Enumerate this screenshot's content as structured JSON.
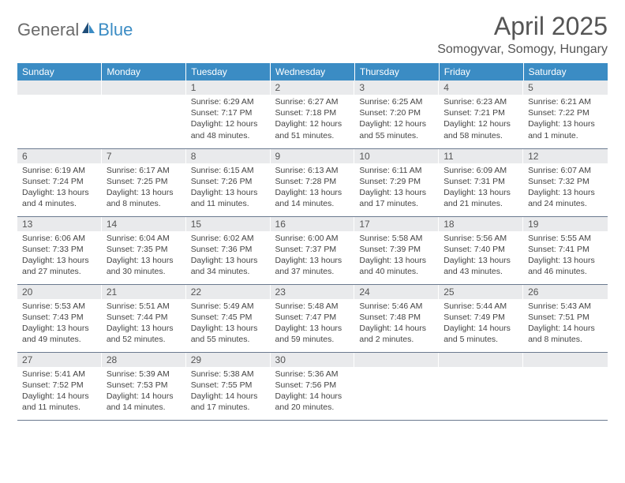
{
  "brand": {
    "general": "General",
    "blue": "Blue"
  },
  "title": "April 2025",
  "location": "Somogyvar, Somogy, Hungary",
  "colors": {
    "header_bg": "#3b8cc4",
    "header_fg": "#ffffff",
    "daynum_bg": "#e9eaec",
    "text": "#444444",
    "rule": "#6b7a8f",
    "page_bg": "#ffffff"
  },
  "typography": {
    "title_fontsize": 32,
    "location_fontsize": 16,
    "header_fontsize": 12,
    "body_fontsize": 10.5
  },
  "calendar": {
    "type": "table",
    "columns": [
      "Sunday",
      "Monday",
      "Tuesday",
      "Wednesday",
      "Thursday",
      "Friday",
      "Saturday"
    ],
    "weeks": [
      [
        null,
        null,
        {
          "n": "1",
          "sr": "Sunrise: 6:29 AM",
          "ss": "Sunset: 7:17 PM",
          "dl": "Daylight: 12 hours and 48 minutes."
        },
        {
          "n": "2",
          "sr": "Sunrise: 6:27 AM",
          "ss": "Sunset: 7:18 PM",
          "dl": "Daylight: 12 hours and 51 minutes."
        },
        {
          "n": "3",
          "sr": "Sunrise: 6:25 AM",
          "ss": "Sunset: 7:20 PM",
          "dl": "Daylight: 12 hours and 55 minutes."
        },
        {
          "n": "4",
          "sr": "Sunrise: 6:23 AM",
          "ss": "Sunset: 7:21 PM",
          "dl": "Daylight: 12 hours and 58 minutes."
        },
        {
          "n": "5",
          "sr": "Sunrise: 6:21 AM",
          "ss": "Sunset: 7:22 PM",
          "dl": "Daylight: 13 hours and 1 minute."
        }
      ],
      [
        {
          "n": "6",
          "sr": "Sunrise: 6:19 AM",
          "ss": "Sunset: 7:24 PM",
          "dl": "Daylight: 13 hours and 4 minutes."
        },
        {
          "n": "7",
          "sr": "Sunrise: 6:17 AM",
          "ss": "Sunset: 7:25 PM",
          "dl": "Daylight: 13 hours and 8 minutes."
        },
        {
          "n": "8",
          "sr": "Sunrise: 6:15 AM",
          "ss": "Sunset: 7:26 PM",
          "dl": "Daylight: 13 hours and 11 minutes."
        },
        {
          "n": "9",
          "sr": "Sunrise: 6:13 AM",
          "ss": "Sunset: 7:28 PM",
          "dl": "Daylight: 13 hours and 14 minutes."
        },
        {
          "n": "10",
          "sr": "Sunrise: 6:11 AM",
          "ss": "Sunset: 7:29 PM",
          "dl": "Daylight: 13 hours and 17 minutes."
        },
        {
          "n": "11",
          "sr": "Sunrise: 6:09 AM",
          "ss": "Sunset: 7:31 PM",
          "dl": "Daylight: 13 hours and 21 minutes."
        },
        {
          "n": "12",
          "sr": "Sunrise: 6:07 AM",
          "ss": "Sunset: 7:32 PM",
          "dl": "Daylight: 13 hours and 24 minutes."
        }
      ],
      [
        {
          "n": "13",
          "sr": "Sunrise: 6:06 AM",
          "ss": "Sunset: 7:33 PM",
          "dl": "Daylight: 13 hours and 27 minutes."
        },
        {
          "n": "14",
          "sr": "Sunrise: 6:04 AM",
          "ss": "Sunset: 7:35 PM",
          "dl": "Daylight: 13 hours and 30 minutes."
        },
        {
          "n": "15",
          "sr": "Sunrise: 6:02 AM",
          "ss": "Sunset: 7:36 PM",
          "dl": "Daylight: 13 hours and 34 minutes."
        },
        {
          "n": "16",
          "sr": "Sunrise: 6:00 AM",
          "ss": "Sunset: 7:37 PM",
          "dl": "Daylight: 13 hours and 37 minutes."
        },
        {
          "n": "17",
          "sr": "Sunrise: 5:58 AM",
          "ss": "Sunset: 7:39 PM",
          "dl": "Daylight: 13 hours and 40 minutes."
        },
        {
          "n": "18",
          "sr": "Sunrise: 5:56 AM",
          "ss": "Sunset: 7:40 PM",
          "dl": "Daylight: 13 hours and 43 minutes."
        },
        {
          "n": "19",
          "sr": "Sunrise: 5:55 AM",
          "ss": "Sunset: 7:41 PM",
          "dl": "Daylight: 13 hours and 46 minutes."
        }
      ],
      [
        {
          "n": "20",
          "sr": "Sunrise: 5:53 AM",
          "ss": "Sunset: 7:43 PM",
          "dl": "Daylight: 13 hours and 49 minutes."
        },
        {
          "n": "21",
          "sr": "Sunrise: 5:51 AM",
          "ss": "Sunset: 7:44 PM",
          "dl": "Daylight: 13 hours and 52 minutes."
        },
        {
          "n": "22",
          "sr": "Sunrise: 5:49 AM",
          "ss": "Sunset: 7:45 PM",
          "dl": "Daylight: 13 hours and 55 minutes."
        },
        {
          "n": "23",
          "sr": "Sunrise: 5:48 AM",
          "ss": "Sunset: 7:47 PM",
          "dl": "Daylight: 13 hours and 59 minutes."
        },
        {
          "n": "24",
          "sr": "Sunrise: 5:46 AM",
          "ss": "Sunset: 7:48 PM",
          "dl": "Daylight: 14 hours and 2 minutes."
        },
        {
          "n": "25",
          "sr": "Sunrise: 5:44 AM",
          "ss": "Sunset: 7:49 PM",
          "dl": "Daylight: 14 hours and 5 minutes."
        },
        {
          "n": "26",
          "sr": "Sunrise: 5:43 AM",
          "ss": "Sunset: 7:51 PM",
          "dl": "Daylight: 14 hours and 8 minutes."
        }
      ],
      [
        {
          "n": "27",
          "sr": "Sunrise: 5:41 AM",
          "ss": "Sunset: 7:52 PM",
          "dl": "Daylight: 14 hours and 11 minutes."
        },
        {
          "n": "28",
          "sr": "Sunrise: 5:39 AM",
          "ss": "Sunset: 7:53 PM",
          "dl": "Daylight: 14 hours and 14 minutes."
        },
        {
          "n": "29",
          "sr": "Sunrise: 5:38 AM",
          "ss": "Sunset: 7:55 PM",
          "dl": "Daylight: 14 hours and 17 minutes."
        },
        {
          "n": "30",
          "sr": "Sunrise: 5:36 AM",
          "ss": "Sunset: 7:56 PM",
          "dl": "Daylight: 14 hours and 20 minutes."
        },
        null,
        null,
        null
      ]
    ]
  }
}
